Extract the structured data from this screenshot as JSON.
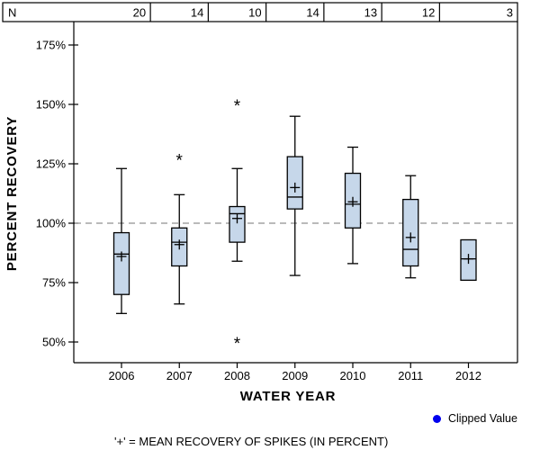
{
  "chart_data": {
    "type": "boxplot",
    "title": "",
    "xlabel": "WATER YEAR",
    "ylabel": "PERCENT RECOVERY",
    "count_row": {
      "label": "N",
      "values": [
        20,
        14,
        10,
        14,
        13,
        12,
        3
      ]
    },
    "categories": [
      "2006",
      "2007",
      "2008",
      "2009",
      "2010",
      "2011",
      "2012"
    ],
    "y_ticks": [
      {
        "value": 175,
        "label": "175%"
      },
      {
        "value": 150,
        "label": "150%"
      },
      {
        "value": 125,
        "label": "125%"
      },
      {
        "value": 100,
        "label": "100%"
      },
      {
        "value": 75,
        "label": "75%"
      },
      {
        "value": 50,
        "label": "50%"
      }
    ],
    "ylim": [
      41,
      185
    ],
    "grid": false,
    "reference_line": {
      "value": 100,
      "style": "dashed"
    },
    "mean_marker": "+",
    "outlier_marker": "*",
    "boxes": [
      {
        "category": "2006",
        "n": 20,
        "whisker_low": 62,
        "q1": 70,
        "median": 87,
        "mean": 86,
        "q3": 96,
        "whisker_high": 123,
        "outliers": []
      },
      {
        "category": "2007",
        "n": 14,
        "whisker_low": 66,
        "q1": 82,
        "median": 92,
        "mean": 91,
        "q3": 98,
        "whisker_high": 112,
        "outliers": [
          127
        ]
      },
      {
        "category": "2008",
        "n": 10,
        "whisker_low": 84,
        "q1": 92,
        "median": 104,
        "mean": 102,
        "q3": 107,
        "whisker_high": 123,
        "outliers": [
          150,
          50
        ]
      },
      {
        "category": "2009",
        "n": 14,
        "whisker_low": 78,
        "q1": 106,
        "median": 111,
        "mean": 115,
        "q3": 128,
        "whisker_high": 145,
        "outliers": []
      },
      {
        "category": "2010",
        "n": 13,
        "whisker_low": 83,
        "q1": 98,
        "median": 108,
        "mean": 109,
        "q3": 121,
        "whisker_high": 132,
        "outliers": []
      },
      {
        "category": "2011",
        "n": 12,
        "whisker_low": 77,
        "q1": 82,
        "median": 89,
        "mean": 94,
        "q3": 110,
        "whisker_high": 120,
        "outliers": []
      },
      {
        "category": "2012",
        "n": 3,
        "whisker_low": null,
        "q1": 76,
        "median": 85,
        "mean": 85,
        "q3": 93,
        "whisker_high": null,
        "outliers": []
      }
    ]
  },
  "legend": {
    "marker": "filled-circle",
    "marker_color": "#0000ee",
    "label": "Clipped Value"
  },
  "footnote": "'+' = MEAN RECOVERY OF SPIKES (IN PERCENT)",
  "colors": {
    "box_fill": "#c6d7ea",
    "box_stroke": "#000000",
    "axis": "#000000",
    "reference_line": "#909090",
    "text": "#000000",
    "background": "#ffffff"
  }
}
